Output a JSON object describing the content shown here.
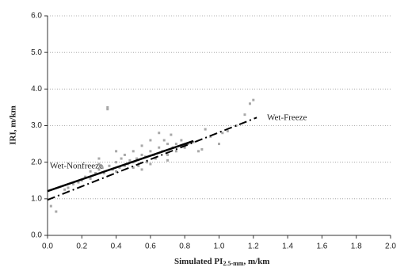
{
  "chart_data": {
    "type": "scatter",
    "x_label": {
      "text": "Simulated PI",
      "sub": "2.5-mm",
      "rest": ", m/km"
    },
    "y_label": "IRI, m/km",
    "x": [
      0.02,
      0.05,
      0.1,
      0.12,
      0.15,
      0.18,
      0.2,
      0.22,
      0.25,
      0.25,
      0.28,
      0.3,
      0.3,
      0.32,
      0.33,
      0.35,
      0.35,
      0.36,
      0.38,
      0.4,
      0.4,
      0.42,
      0.43,
      0.45,
      0.45,
      0.47,
      0.48,
      0.5,
      0.5,
      0.52,
      0.53,
      0.55,
      0.55,
      0.57,
      0.58,
      0.6,
      0.6,
      0.62,
      0.63,
      0.65,
      0.65,
      0.67,
      0.68,
      0.7,
      0.7,
      0.72,
      0.73,
      0.75,
      0.75,
      0.78,
      0.8,
      0.82,
      0.85,
      0.88,
      0.9,
      0.92,
      0.95,
      1.0,
      1.02,
      1.05,
      1.1,
      1.15,
      1.18,
      1.2,
      0.3,
      0.4,
      0.5,
      0.6,
      0.7,
      0.55
    ],
    "values": [
      0.8,
      0.65,
      1.25,
      1.3,
      1.4,
      1.45,
      1.5,
      1.6,
      1.55,
      1.75,
      1.7,
      1.8,
      1.95,
      1.85,
      1.7,
      3.5,
      3.45,
      1.9,
      1.8,
      2.0,
      1.75,
      1.85,
      2.1,
      1.9,
      2.2,
      1.95,
      2.05,
      2.0,
      2.3,
      2.1,
      1.9,
      2.2,
      2.45,
      2.15,
      2.0,
      2.3,
      2.6,
      2.2,
      2.1,
      2.4,
      2.8,
      2.3,
      2.6,
      2.5,
      2.2,
      2.75,
      2.4,
      2.5,
      2.3,
      2.6,
      2.4,
      2.5,
      2.55,
      2.3,
      2.35,
      2.9,
      2.7,
      2.5,
      2.8,
      2.85,
      3.0,
      3.3,
      3.6,
      3.7,
      2.1,
      2.3,
      1.85,
      1.95,
      2.05,
      1.8
    ],
    "color": "#a8a8a8",
    "lines": [
      {
        "name": "Wet-Nonfreeze",
        "x": [
          0,
          0.85
        ],
        "values": [
          1.21,
          2.58
        ],
        "color": "#000000",
        "dash": "solid"
      },
      {
        "name": "Wet-Freeze",
        "x": [
          0,
          1.22
        ],
        "values": [
          0.97,
          3.22
        ],
        "color": "#000000",
        "dash": "dashdot"
      }
    ],
    "xlim": [
      0,
      2
    ],
    "ylim": [
      0,
      6
    ],
    "xticks": [
      {
        "value": 0,
        "label": "0.0"
      },
      0.2,
      0.4,
      0.6,
      0.8,
      {
        "value": 1,
        "label": "1.0"
      },
      1.2,
      1.4,
      1.6,
      1.8,
      {
        "value": 2,
        "label": "2.0"
      }
    ],
    "yticks": [
      {
        "value": 0,
        "label": "0.0"
      },
      {
        "value": 1,
        "label": "1.0"
      },
      {
        "value": 2,
        "label": "2.0"
      },
      {
        "value": 3,
        "label": "3.0"
      },
      {
        "value": 4,
        "label": "4.0"
      },
      {
        "value": 5,
        "label": "5.0"
      },
      {
        "value": 6,
        "label": "6.0"
      }
    ],
    "grid": true
  }
}
